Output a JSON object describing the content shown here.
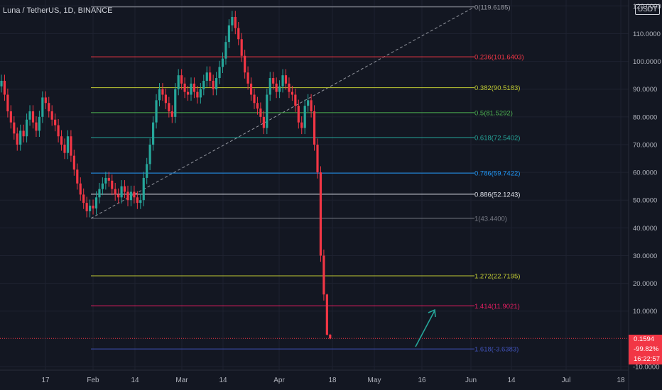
{
  "header": {
    "symbol_label": "Luna / TetherUS, 1D, BINANCE",
    "unit_label": "USDT"
  },
  "price_tag": {
    "price": "0.1594",
    "change": "-99.82%",
    "countdown": "16:22:57"
  },
  "colors": {
    "background": "#131722",
    "up_candle": "#26a69a",
    "down_candle": "#f23645",
    "axis_text": "#b2b5be",
    "arrow": "#26a69a"
  },
  "chart_data": {
    "type": "candlestick",
    "title": "Luna / TetherUS, 1D, BINANCE",
    "y_axis": {
      "position": "right",
      "ylim": [
        -10,
        120
      ],
      "ticks": [
        "-10.0000",
        "10.0000",
        "20.0000",
        "30.0000",
        "40.0000",
        "50.0000",
        "60.0000",
        "70.0000",
        "80.0000",
        "90.0000",
        "100.0000",
        "110.0000",
        "120.0000"
      ]
    },
    "x_axis": {
      "ticks": [
        "17",
        "Feb",
        "14",
        "Mar",
        "14",
        "Apr",
        "18",
        "May",
        "16",
        "Jun",
        "14",
        "Jul",
        "18"
      ]
    },
    "fib_levels": [
      {
        "label": "0(119.6185)",
        "ratio": 0,
        "value": 119.6185,
        "color": "#9598a1"
      },
      {
        "label": "0.236(101.6403)",
        "ratio": 0.236,
        "value": 101.6403,
        "color": "#f23645"
      },
      {
        "label": "0.382(90.5183)",
        "ratio": 0.382,
        "value": 90.5183,
        "color": "#c0ca33"
      },
      {
        "label": "0.5(81.5292)",
        "ratio": 0.5,
        "value": 81.5292,
        "color": "#4caf50"
      },
      {
        "label": "0.618(72.5402)",
        "ratio": 0.618,
        "value": 72.5402,
        "color": "#26a69a"
      },
      {
        "label": "0.786(59.7422)",
        "ratio": 0.786,
        "value": 59.7422,
        "color": "#2196f3"
      },
      {
        "label": "0.886(52.1243)",
        "ratio": 0.886,
        "value": 52.1243,
        "color": "#e0e3eb"
      },
      {
        "label": "1(43.4400)",
        "ratio": 1,
        "value": 43.44,
        "color": "#787b86"
      },
      {
        "label": "1.272(22.7195)",
        "ratio": 1.272,
        "value": 22.7195,
        "color": "#c0ca33"
      },
      {
        "label": "1.414(11.9021)",
        "ratio": 1.414,
        "value": 11.9021,
        "color": "#e91e63"
      },
      {
        "label": "1.618(-3.6383)",
        "ratio": 1.618,
        "value": -3.6383,
        "color": "#3f51b5"
      }
    ],
    "last_price": 0.1594,
    "close_series": [
      93,
      88,
      82,
      78,
      74,
      70,
      75,
      73,
      79,
      82,
      78,
      75,
      80,
      87,
      85,
      82,
      79,
      77,
      73,
      70,
      67,
      73,
      66,
      61,
      56,
      52,
      49,
      46,
      48,
      47,
      51,
      54,
      56,
      58,
      57,
      54,
      52,
      51,
      55,
      53,
      50,
      53,
      51,
      49,
      50,
      58,
      63,
      70,
      78,
      86,
      90,
      88,
      85,
      82,
      80,
      90,
      95,
      92,
      89,
      88,
      92,
      89,
      87,
      90,
      93,
      96,
      93,
      90,
      94,
      98,
      101,
      107,
      113,
      116,
      112,
      108,
      102,
      96,
      92,
      88,
      85,
      83,
      80,
      76,
      88,
      94,
      92,
      89,
      91,
      95,
      92,
      89,
      88,
      84,
      78,
      76,
      84,
      86,
      82,
      70,
      60,
      30,
      16,
      1.5,
      0.16
    ]
  }
}
